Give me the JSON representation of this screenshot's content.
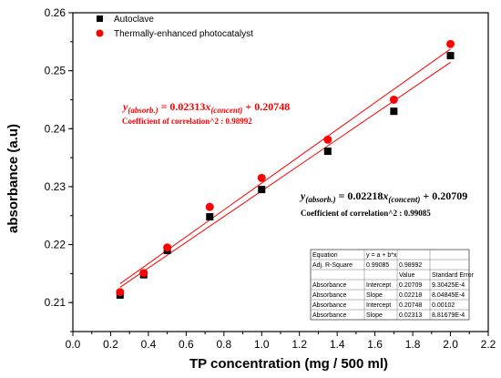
{
  "chart_data": {
    "type": "scatter",
    "xlabel": "TP concentration (mg / 500 ml)",
    "ylabel": "absorbance (a.u)",
    "xlim": [
      0.0,
      2.2
    ],
    "ylim": [
      0.205,
      0.26
    ],
    "x_ticks": [
      "0.0",
      "0.2",
      "0.4",
      "0.6",
      "0.8",
      "1.0",
      "1.2",
      "1.4",
      "1.6",
      "1.8",
      "2.0",
      "2.2"
    ],
    "y_ticks": [
      "0.21",
      "0.22",
      "0.23",
      "0.24",
      "0.25",
      "0.26"
    ],
    "legend_position": "top-left",
    "series": [
      {
        "name": "Autoclave",
        "marker": "square",
        "color": "#000000",
        "x": [
          0.25,
          0.375,
          0.5,
          0.725,
          1.0,
          1.35,
          1.7,
          2.0
        ],
        "y": [
          0.2113,
          0.2148,
          0.219,
          0.2248,
          0.2295,
          0.2361,
          0.243,
          0.2526
        ],
        "fit": {
          "slope": 0.02218,
          "intercept": 0.20709,
          "color": "#ff0000"
        }
      },
      {
        "name": "Thermally-enhanced photocatalyst",
        "marker": "circle",
        "color": "#ff0000",
        "x": [
          0.25,
          0.375,
          0.5,
          0.725,
          1.0,
          1.35,
          1.7,
          2.0
        ],
        "y": [
          0.2118,
          0.2151,
          0.2195,
          0.2265,
          0.2315,
          0.2381,
          0.245,
          0.2546
        ],
        "fit": {
          "slope": 0.02313,
          "intercept": 0.20748,
          "color": "#ff0000"
        }
      }
    ],
    "annotations": {
      "red_equation": {
        "lhs": "y",
        "lhs_sub": "(absorb.)",
        "mid": " = 0.02313",
        "x": "x",
        "x_sub": "(concent)",
        "rhs": " + 0.20748",
        "color": "#ff0000",
        "coef_label": "Coefficient of correlation^2 : 0.98992"
      },
      "black_equation": {
        "lhs": "y",
        "lhs_sub": "(absorb.)",
        "mid": " = 0.02218",
        "x": "x",
        "x_sub": "(concent)",
        "rhs": " + 0.20709",
        "color": "#000000",
        "coef_label": "Coefficient of correlation^2 : 0.99085"
      }
    },
    "stats_table": [
      [
        "Equation",
        "y = a + b*x",
        "",
        ""
      ],
      [
        "Adj. R-Square",
        "0.99085",
        "0.98992",
        ""
      ],
      [
        "",
        "",
        "Value",
        "Standard Error"
      ],
      [
        "Absorbance",
        "Intercept",
        "0.20709",
        "9.30425E-4"
      ],
      [
        "Absorbance",
        "Slope",
        "0.02218",
        "8.04845E-4"
      ],
      [
        "Absorbance",
        "Intercept",
        "0.20748",
        "0.00102"
      ],
      [
        "Absorbance",
        "Slope",
        "0.02313",
        "8.81679E-4"
      ]
    ]
  }
}
